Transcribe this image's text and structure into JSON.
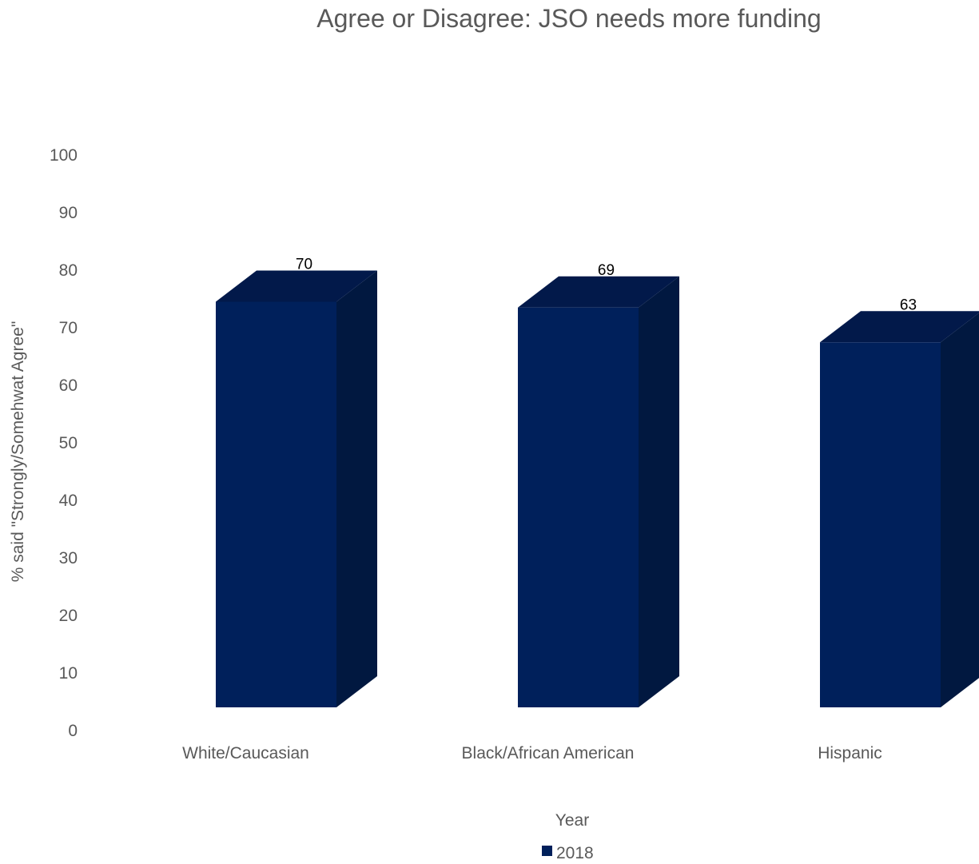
{
  "chart_data": {
    "type": "bar",
    "title": "Agree or Disagree: JSO needs more funding",
    "xlabel": "Year",
    "ylabel": "% said \"Strongly/Somehwat Agree\"",
    "categories": [
      "White/Caucasian",
      "Black/African American",
      "Hispanic"
    ],
    "series": [
      {
        "name": "2018",
        "values": [
          70,
          69,
          63
        ]
      }
    ],
    "ylim": [
      0,
      100
    ],
    "yticks": [
      "0",
      "10",
      "20",
      "30",
      "40",
      "50",
      "60",
      "70",
      "80",
      "90",
      "100"
    ],
    "data_labels": [
      "70",
      "69",
      "63"
    ],
    "grid": false,
    "legend_position": "bottom",
    "style": "3d-column",
    "colors": {
      "front": "#00205B",
      "side": "#011840",
      "top": "#02194A"
    }
  }
}
